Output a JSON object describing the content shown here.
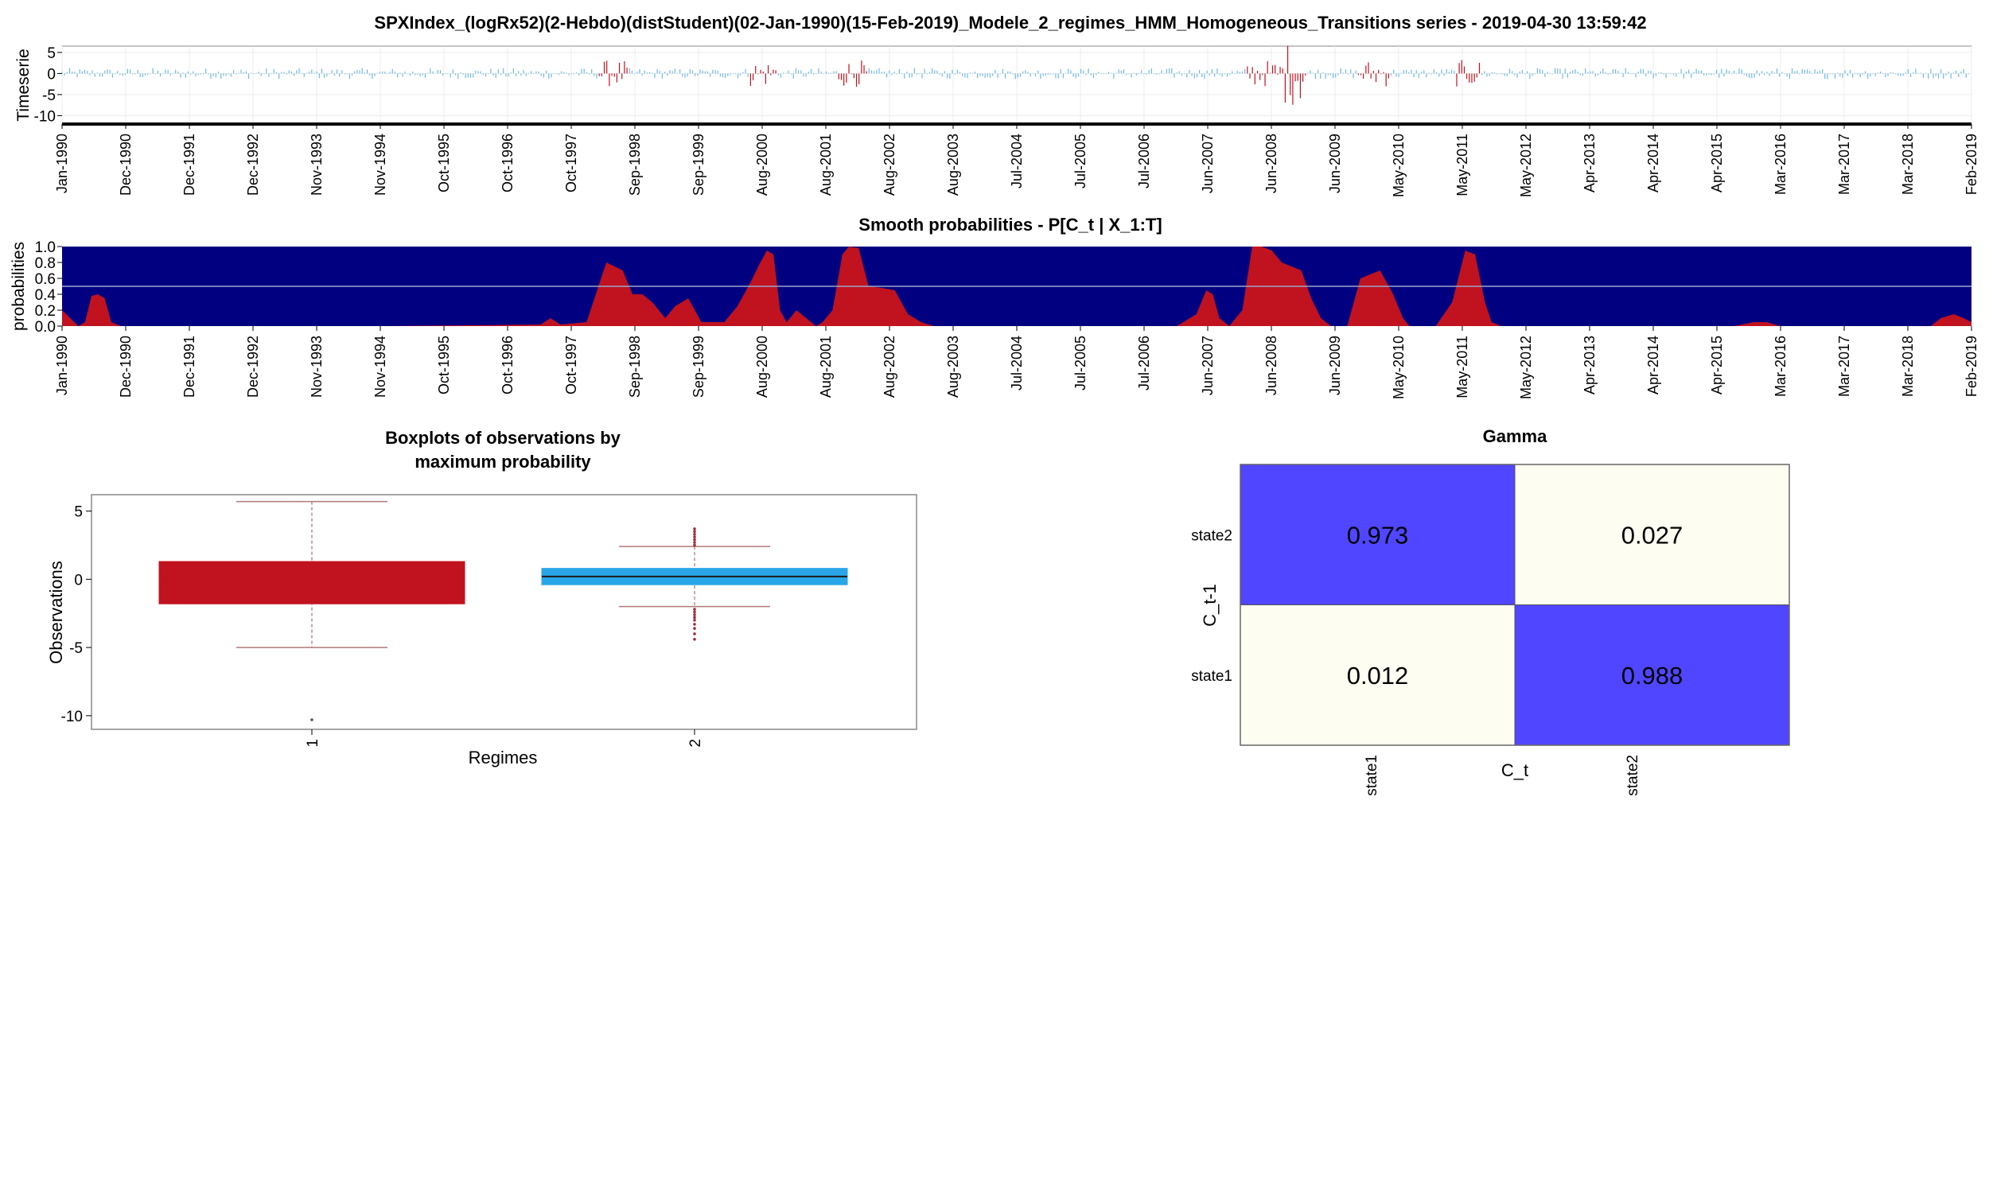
{
  "page_title": "SPXIndex_(logRx52)(2-Hebdo)(distStudent)(02-Jan-1990)(15-Feb-2019)_Modele_2_regimes_HMM_Homogeneous_Transitions series -  2019-04-30 13:59:42",
  "colors": {
    "regime1": "#c0121f",
    "regime2": "#29a6e8",
    "regime2_line": "#6fb8ea",
    "prob_background": "#000080",
    "gamma_high": "#5046ff",
    "gamma_low": "#fdfdf2",
    "whisker": "#b07a7a"
  },
  "date_ticks": [
    "Jan-1990",
    "Dec-1990",
    "Dec-1991",
    "Dec-1992",
    "Nov-1993",
    "Nov-1994",
    "Oct-1995",
    "Oct-1996",
    "Oct-1997",
    "Sep-1998",
    "Sep-1999",
    "Aug-2000",
    "Aug-2001",
    "Aug-2002",
    "Aug-2003",
    "Jul-2004",
    "Jul-2005",
    "Jul-2006",
    "Jun-2007",
    "Jun-2008",
    "Jun-2009",
    "May-2010",
    "May-2011",
    "May-2012",
    "Apr-2013",
    "Apr-2014",
    "Apr-2015",
    "Mar-2016",
    "Mar-2017",
    "Mar-2018",
    "Feb-2019"
  ],
  "chart_data": [
    {
      "type": "bar",
      "ylabel": "Timeserie",
      "x_range": [
        "1990-01-02",
        "2019-02-15"
      ],
      "ylim": [
        -12,
        6.5
      ],
      "yticks": [
        5,
        0,
        -5,
        -10
      ],
      "grid": true,
      "series": [
        {
          "regime": 1,
          "color": "#c0121f"
        },
        {
          "regime": 2,
          "color": "#29a6e8"
        }
      ],
      "note_values": "weekly log returns, colored by most probable regime"
    },
    {
      "type": "area",
      "title": "Smooth probabilities - P[C_t | X_1:T]",
      "ylabel": "probabilities",
      "ylim": [
        0,
        1
      ],
      "yticks": [
        "1.0",
        "0.8",
        "0.6",
        "0.4",
        "0.2",
        "0.0"
      ],
      "reference_line": 0.5,
      "x": [
        1990.0,
        1990.25,
        1990.35,
        1990.45,
        1990.55,
        1990.65,
        1990.75,
        1990.9,
        1992.0,
        1995.0,
        1997.3,
        1997.45,
        1997.6,
        1998.0,
        1998.3,
        1998.55,
        1998.7,
        1998.85,
        1999.0,
        1999.2,
        1999.35,
        1999.55,
        1999.75,
        1999.9,
        2000.1,
        2000.3,
        2000.5,
        2000.65,
        2000.75,
        2000.85,
        2000.95,
        2001.05,
        2001.2,
        2001.35,
        2001.5,
        2001.6,
        2001.75,
        2001.9,
        2002.0,
        2002.15,
        2002.3,
        2002.5,
        2002.7,
        2002.9,
        2003.1,
        2003.3,
        2003.5,
        2004.0,
        2006.0,
        2007.0,
        2007.3,
        2007.45,
        2007.55,
        2007.65,
        2007.8,
        2008.0,
        2008.15,
        2008.3,
        2008.45,
        2008.6,
        2008.9,
        2009.05,
        2009.2,
        2009.35,
        2009.45,
        2009.6,
        2009.8,
        2010.1,
        2010.3,
        2010.45,
        2010.55,
        2010.65,
        2010.8,
        2010.95,
        2011.2,
        2011.4,
        2011.55,
        2011.7,
        2011.8,
        2011.95,
        2012.2,
        2013.0,
        2014.0,
        2015.5,
        2015.8,
        2016.0,
        2016.2,
        2017.0,
        2018.5,
        2018.65,
        2018.85,
        2019.0,
        2019.12
      ],
      "y": [
        0.2,
        0.0,
        0.05,
        0.38,
        0.4,
        0.35,
        0.05,
        0.0,
        0.0,
        0.0,
        0.02,
        0.1,
        0.02,
        0.05,
        0.8,
        0.7,
        0.4,
        0.4,
        0.3,
        0.1,
        0.25,
        0.35,
        0.05,
        0.05,
        0.05,
        0.25,
        0.55,
        0.8,
        0.95,
        0.9,
        0.2,
        0.05,
        0.2,
        0.1,
        0.0,
        0.05,
        0.2,
        0.9,
        1.0,
        0.98,
        0.5,
        0.48,
        0.45,
        0.15,
        0.05,
        0.0,
        0.0,
        0.0,
        0.0,
        0.0,
        0.15,
        0.45,
        0.4,
        0.1,
        0.0,
        0.2,
        1.0,
        1.0,
        0.95,
        0.8,
        0.7,
        0.35,
        0.1,
        0.0,
        0.0,
        0.0,
        0.6,
        0.7,
        0.4,
        0.1,
        0.0,
        0.0,
        0.0,
        0.0,
        0.3,
        0.95,
        0.9,
        0.3,
        0.05,
        0.0,
        0.0,
        0.0,
        0.0,
        0.0,
        0.05,
        0.05,
        0.0,
        0.0,
        0.0,
        0.1,
        0.15,
        0.1,
        0.05
      ]
    },
    {
      "type": "box",
      "title": "Boxplots of observations by maximum probability",
      "xlabel": "Regimes",
      "ylabel": "Observations",
      "categories": [
        "1",
        "2"
      ],
      "ylim": [
        -11,
        6.2
      ],
      "yticks": [
        5,
        0,
        -5,
        -10
      ],
      "boxes": [
        {
          "category": "1",
          "whisker_low": -5.0,
          "q1": -1.8,
          "median": 0.0,
          "q3": 1.3,
          "whisker_high": 5.7,
          "outliers": [
            -10.3
          ],
          "color": "#c0121f"
        },
        {
          "category": "2",
          "whisker_low": -2.0,
          "q1": -0.4,
          "median": 0.2,
          "q3": 0.8,
          "whisker_high": 2.4,
          "outliers_high": [
            2.5,
            2.7,
            2.9,
            3.1,
            3.3,
            3.5,
            3.7
          ],
          "outliers_low": [
            -2.2,
            -2.4,
            -2.6,
            -2.8,
            -3.0,
            -3.3,
            -3.6,
            -4.0,
            -4.4
          ],
          "color": "#29a6e8"
        }
      ]
    },
    {
      "type": "heatmap",
      "title": "Gamma",
      "xlabel": "C_t",
      "ylabel": "C_t-1",
      "x_categories": [
        "state1",
        "state2"
      ],
      "y_categories": [
        "state2",
        "state1"
      ],
      "cells": [
        {
          "row": "state2",
          "col": "state1",
          "value": "0.973"
        },
        {
          "row": "state2",
          "col": "state2",
          "value": "0.027"
        },
        {
          "row": "state1",
          "col": "state1",
          "value": "0.012"
        },
        {
          "row": "state1",
          "col": "state2",
          "value": "0.988"
        }
      ]
    }
  ]
}
